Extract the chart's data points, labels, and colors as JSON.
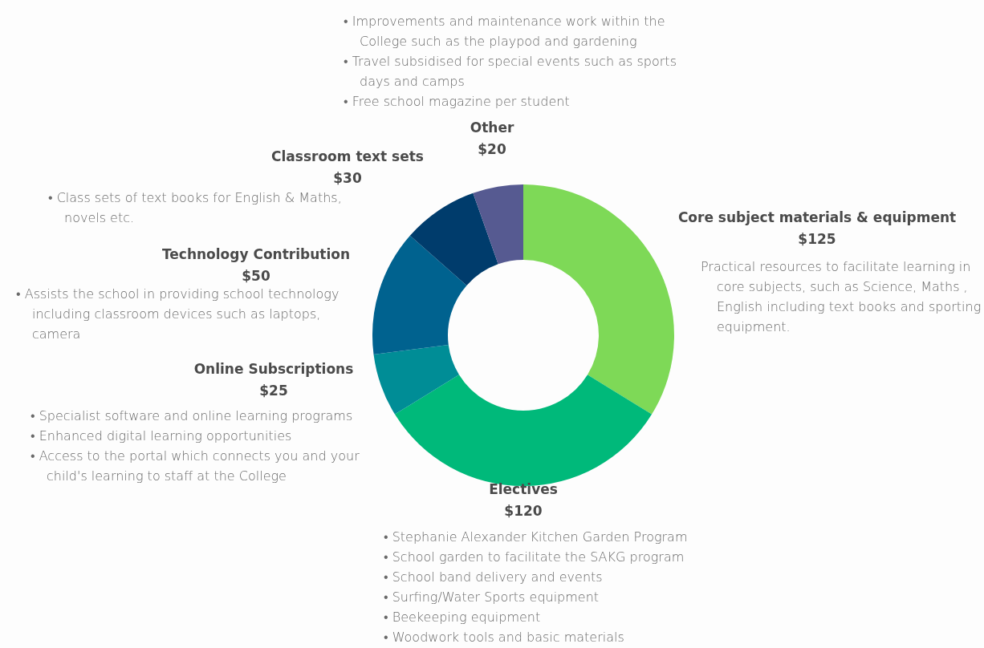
{
  "chart_data": {
    "type": "donut",
    "categories": [
      "Core subject materials & equipment",
      "Electives",
      "Online Subscriptions",
      "Technology Contribution",
      "Classroom text sets",
      "Other"
    ],
    "values": [
      125,
      120,
      25,
      50,
      30,
      20
    ],
    "value_labels": [
      "$125",
      "$120",
      "$25",
      "$50",
      "$30",
      "$20"
    ],
    "colors": [
      "#7ed957",
      "#00b97a",
      "#008d96",
      "#00628f",
      "#003c6c",
      "#565a91"
    ],
    "legend": false,
    "annotations": [
      "• Improvements and maintenance work within the College such as the playpod and gardening\n• Travel subsidised for special events such as sports days and camps\n• Free school magazine per student",
      "• Class sets of text books for English & Maths, novels etc.",
      "Practical resources to facilitate learning in core subjects, such as Science, Maths , English including text books and sporting equipment.",
      "• Assists the school in providing school technology including classroom devices such as laptops, camera",
      "• Specialist software and online learning programs\n• Enhanced digital learning opportunities\n• Access to the portal which connects you and your child's learning to staff at the College",
      "• Stephanie Alexander Kitchen Garden Program\n• School garden to facilitate the SAKG program\n• School band delivery and events\n• Surfing/Water Sports equipment\n• Beekeeping equipment\n• Woodwork tools and basic materials"
    ]
  }
}
